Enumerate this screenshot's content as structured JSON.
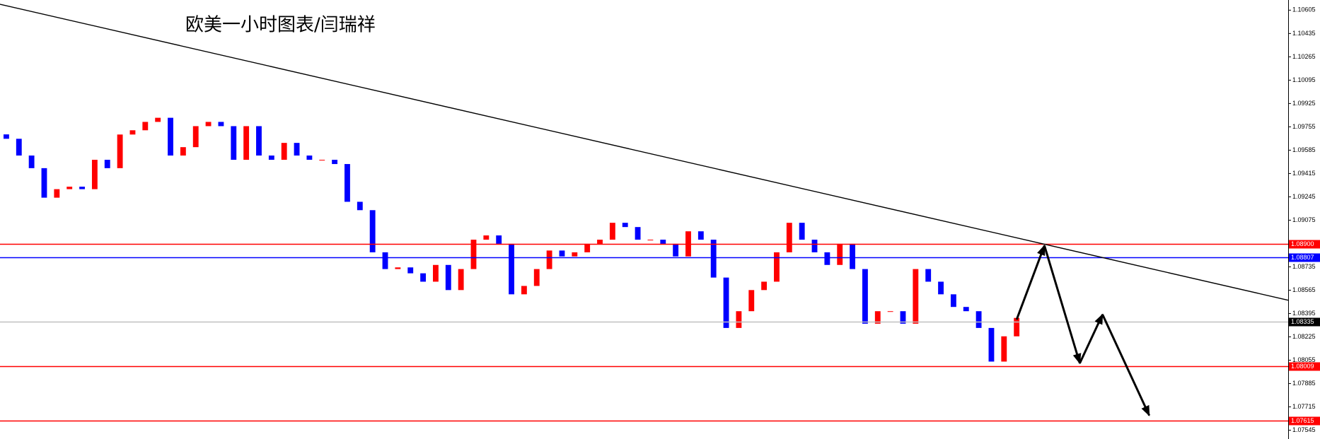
{
  "chart_data": {
    "type": "candlestick",
    "title": "欧美一小时图表/闫瑞祥",
    "ylim": [
      1.07481,
      1.10679
    ],
    "xlim": [
      -0.5,
      101.5
    ],
    "yticks": [
      1.10605,
      1.10435,
      1.10265,
      1.10095,
      1.09925,
      1.09755,
      1.09585,
      1.09415,
      1.09245,
      1.09075,
      1.08735,
      1.08565,
      1.08395,
      1.08225,
      1.08055,
      1.07885,
      1.07715,
      1.07545
    ],
    "up_color": "#ff0000",
    "down_color": "#0000ff",
    "open": [
      1.097,
      1.09668,
      1.09546,
      1.09454,
      1.09239,
      1.09301,
      1.09319,
      1.09301,
      1.09515,
      1.09454,
      1.09699,
      1.0973,
      1.09791,
      1.09821,
      1.09546,
      1.09607,
      1.0976,
      1.09791,
      1.0976,
      1.09515,
      1.0976,
      1.09546,
      1.09515,
      1.09638,
      1.09546,
      1.09515,
      1.09515,
      1.09484,
      1.09209,
      1.09148,
      1.08841,
      1.08719,
      1.08731,
      1.08688,
      1.08627,
      1.08749,
      1.08566,
      1.08719,
      1.08933,
      1.08964,
      1.08903,
      1.08535,
      1.08596,
      1.08719,
      1.08854,
      1.08811,
      1.08841,
      1.08903,
      1.08933,
      1.09056,
      1.09025,
      1.08933,
      1.08933,
      1.08903,
      1.08811,
      1.08994,
      1.08933,
      1.08657,
      1.0829,
      1.08412,
      1.08566,
      1.08627,
      1.08841,
      1.09056,
      1.08933,
      1.08841,
      1.08749,
      1.08903,
      1.08719,
      1.08321,
      1.08412,
      1.08412,
      1.08321,
      1.08719,
      1.08627,
      1.08535,
      1.08443,
      1.08412,
      1.0829,
      1.08045,
      1.08229
    ],
    "close": [
      1.09668,
      1.09546,
      1.09454,
      1.09239,
      1.09301,
      1.09319,
      1.09301,
      1.09515,
      1.09454,
      1.09699,
      1.0973,
      1.09791,
      1.09821,
      1.09546,
      1.09607,
      1.0976,
      1.09791,
      1.0976,
      1.09515,
      1.0976,
      1.09546,
      1.09515,
      1.09638,
      1.09546,
      1.09515,
      1.09515,
      1.09484,
      1.09209,
      1.09148,
      1.08841,
      1.08719,
      1.08731,
      1.08688,
      1.08627,
      1.08749,
      1.08566,
      1.08719,
      1.08933,
      1.08964,
      1.08903,
      1.08535,
      1.08596,
      1.08719,
      1.08854,
      1.08811,
      1.08841,
      1.08903,
      1.08933,
      1.09056,
      1.09025,
      1.08933,
      1.08933,
      1.08903,
      1.08811,
      1.08994,
      1.08933,
      1.08657,
      1.0829,
      1.08412,
      1.08566,
      1.08627,
      1.08841,
      1.09056,
      1.08933,
      1.08841,
      1.08749,
      1.08903,
      1.08719,
      1.08321,
      1.08412,
      1.08412,
      1.08321,
      1.08719,
      1.08627,
      1.08535,
      1.08443,
      1.08412,
      1.0829,
      1.08045,
      1.08229,
      1.08363
    ],
    "levels": [
      {
        "value": 1.089,
        "label": "1.08900",
        "color": "#ff0000",
        "label_bg": "#ff0000"
      },
      {
        "value": 1.08807,
        "label": "1.08807",
        "color": "#0000ff",
        "label_bg": "#0000ff"
      },
      {
        "value": 1.08335,
        "label": "1.08335",
        "color": "#c0c0c0",
        "label_bg": "#000000"
      },
      {
        "value": 1.08009,
        "label": "1.08009",
        "color": "#ff0000",
        "label_bg": "#ff0000"
      },
      {
        "value": 1.07615,
        "label": "1.07615",
        "color": "#ff0000",
        "label_bg": "#ff0000"
      }
    ],
    "trendline": {
      "x": [
        -0.5,
        101.5
      ],
      "y": [
        1.10648,
        1.08492
      ],
      "color": "#000000"
    },
    "arrow_path": {
      "x": [
        80.0,
        82.2,
        85.0,
        86.8,
        90.5
      ],
      "y": [
        1.08351,
        1.0889,
        1.08033,
        1.08388,
        1.07653
      ],
      "color": "#000000"
    }
  }
}
